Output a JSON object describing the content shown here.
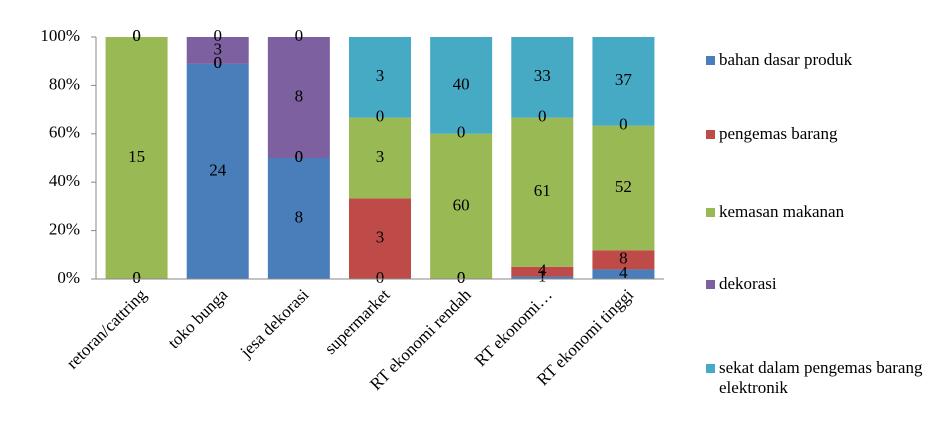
{
  "chart_data": {
    "type": "bar",
    "stack": "percent",
    "categories": [
      "retoran/cattring",
      "toko bunga",
      "jesa dekorasi",
      "supermarket",
      "RT ekonomi rendah",
      "RT ekonomi…",
      "RT ekonomi tinggi"
    ],
    "series": [
      {
        "name": "bahan dasar produk",
        "color": "#4a7ebb",
        "values": [
          0,
          24,
          8,
          0,
          0,
          1,
          4
        ]
      },
      {
        "name": "pengemas barang",
        "color": "#be4b48",
        "values": [
          0,
          0,
          0,
          3,
          0,
          4,
          8
        ]
      },
      {
        "name": "kemasan makanan",
        "color": "#98b954",
        "values": [
          15,
          0,
          0,
          3,
          60,
          61,
          52
        ]
      },
      {
        "name": "dekorasi",
        "color": "#7d60a0",
        "values": [
          0,
          3,
          8,
          0,
          0,
          0,
          0
        ]
      },
      {
        "name": "sekat dalam pengemas barang elektronik",
        "color": "#46aac5",
        "values": [
          0,
          0,
          0,
          3,
          40,
          33,
          37
        ]
      }
    ],
    "ylim": [
      0,
      100
    ],
    "yticks": [
      {
        "value": 0,
        "label": "0%"
      },
      {
        "value": 20,
        "label": "20%"
      },
      {
        "value": 40,
        "label": "40%"
      },
      {
        "value": 60,
        "label": "60%"
      },
      {
        "value": 80,
        "label": "80%"
      },
      {
        "value": 100,
        "label": "100%"
      }
    ],
    "legend": "right"
  }
}
